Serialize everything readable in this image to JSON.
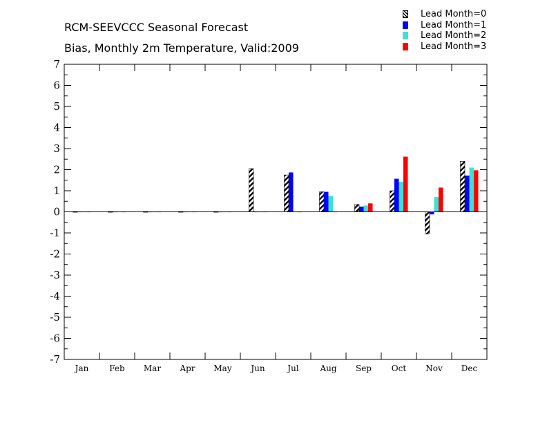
{
  "chart_data": {
    "type": "bar",
    "title": "RCM-SEEVCCC Seasonal Forecast",
    "subtitle": "Bias, Monthly 2m Temperature, Valid:2009",
    "categories": [
      "Jan",
      "Feb",
      "Mar",
      "Apr",
      "May",
      "Jun",
      "Jul",
      "Aug",
      "Sep",
      "Oct",
      "Nov",
      "Dec"
    ],
    "ylim": [
      -7,
      7
    ],
    "yticks": [
      "-7",
      "-6",
      "-5",
      "-4",
      "-3",
      "-2",
      "-1",
      "0",
      "1",
      "2",
      "3",
      "4",
      "5",
      "6",
      "7"
    ],
    "legend_position": "top-right",
    "series": [
      {
        "name": "Lead Month=0",
        "color": "#000000",
        "pattern": "hatched",
        "values": [
          0,
          0,
          0,
          0,
          0,
          2.05,
          1.75,
          0.95,
          0.35,
          1.0,
          -1.05,
          2.4
        ]
      },
      {
        "name": "Lead Month=1",
        "color": "#0000ff",
        "pattern": "solid",
        "values": [
          0,
          0,
          0,
          0,
          0,
          0,
          1.87,
          0.95,
          0.25,
          1.57,
          -0.12,
          1.72
        ]
      },
      {
        "name": "Lead Month=2",
        "color": "#40e0d0",
        "pattern": "solid",
        "values": [
          0,
          0,
          0,
          0,
          0,
          0,
          0,
          0.75,
          0.3,
          1.42,
          0.7,
          2.1
        ]
      },
      {
        "name": "Lead Month=3",
        "color": "#ff0000",
        "pattern": "solid",
        "values": [
          0,
          0,
          0,
          0,
          0,
          0,
          0,
          0,
          0.4,
          2.62,
          1.15,
          1.97
        ]
      }
    ]
  }
}
